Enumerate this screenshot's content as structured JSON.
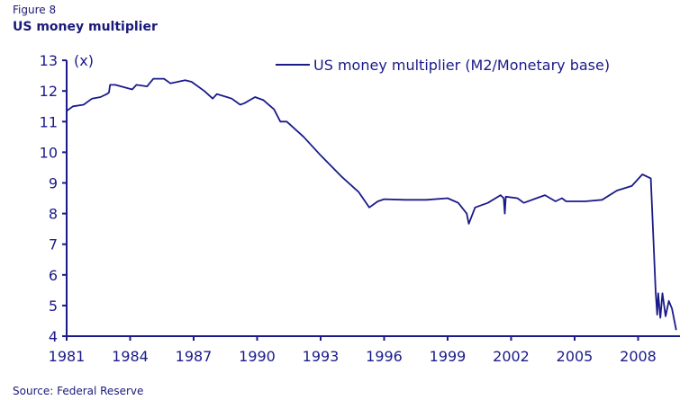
{
  "figure_label": "Figure 8",
  "title": "US money multiplier",
  "source": "Source: Federal Reserve",
  "chart_data": {
    "type": "line",
    "title": "US money multiplier",
    "ylabel": "(x)",
    "xlabel": "",
    "ylim": [
      4,
      13
    ],
    "xlim": [
      1981,
      2010
    ],
    "yticks": [
      "4",
      "5",
      "6",
      "7",
      "8",
      "9",
      "10",
      "11",
      "12",
      "13"
    ],
    "xticks": [
      "1981",
      "1984",
      "1987",
      "1990",
      "1993",
      "1996",
      "1999",
      "2002",
      "2005",
      "2008"
    ],
    "legend": {
      "position": "top-right",
      "entries": [
        "US money multiplier (M2/Monetary base)"
      ]
    },
    "line_color": "#1a1a8a",
    "series": [
      {
        "name": "US money multiplier (M2/Monetary base)",
        "x": [
          1981.0,
          1981.3,
          1981.8,
          1982.2,
          1982.6,
          1982.9,
          1983.0,
          1983.05,
          1983.3,
          1984.1,
          1984.3,
          1984.8,
          1985.1,
          1985.6,
          1985.9,
          1986.6,
          1986.9,
          1987.5,
          1987.9,
          1988.1,
          1988.8,
          1989.2,
          1989.4,
          1989.9,
          1990.3,
          1990.8,
          1991.1,
          1991.4,
          1992.2,
          1993.0,
          1994.0,
          1994.8,
          1995.3,
          1995.7,
          1996.0,
          1997.0,
          1998.0,
          1999.0,
          1999.5,
          1999.9,
          2000.0,
          2000.3,
          2000.9,
          2001.5,
          2001.65,
          2001.7,
          2001.75,
          2002.3,
          2002.6,
          2003.2,
          2003.6,
          2004.1,
          2004.4,
          2004.6,
          2005.5,
          2006.3,
          2007.0,
          2007.7,
          2008.2,
          2008.6,
          2008.83,
          2008.9,
          2008.95,
          2009.05,
          2009.15,
          2009.3,
          2009.45,
          2009.6,
          2009.8
        ],
        "y": [
          11.35,
          11.5,
          11.55,
          11.75,
          11.8,
          11.9,
          11.95,
          12.2,
          12.2,
          12.05,
          12.2,
          12.15,
          12.4,
          12.4,
          12.25,
          12.35,
          12.3,
          12.0,
          11.75,
          11.9,
          11.75,
          11.55,
          11.6,
          11.8,
          11.7,
          11.4,
          11.0,
          11.0,
          10.5,
          9.9,
          9.2,
          8.7,
          8.2,
          8.4,
          8.47,
          8.45,
          8.45,
          8.5,
          8.35,
          8.0,
          7.67,
          8.2,
          8.35,
          8.6,
          8.5,
          8.0,
          8.55,
          8.5,
          8.35,
          8.5,
          8.6,
          8.4,
          8.5,
          8.4,
          8.4,
          8.45,
          8.75,
          8.9,
          9.28,
          9.15,
          5.44,
          4.7,
          5.4,
          4.6,
          5.4,
          4.65,
          5.15,
          4.9,
          4.2
        ]
      }
    ]
  }
}
